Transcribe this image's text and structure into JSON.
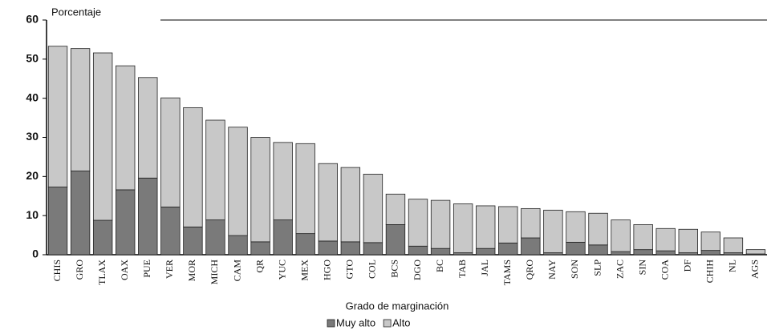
{
  "chart_data": {
    "type": "stacked_bar",
    "y_label": "Porcentaje",
    "x_label": "Grado de marginación",
    "categories": [
      "CHIS",
      "GRO",
      "TLAX",
      "OAX",
      "PUE",
      "VER",
      "MOR",
      "MICH",
      "CAM",
      "QR",
      "YUC",
      "MEX",
      "HGO",
      "GTO",
      "COL",
      "BCS",
      "DGO",
      "BC",
      "TAB",
      "JAL",
      "TAMS",
      "QRO",
      "NAY",
      "SON",
      "SLP",
      "ZAC",
      "SIN",
      "COA",
      "DF",
      "CHIH",
      "NL",
      "AGS"
    ],
    "series": [
      {
        "name": "Muy alto",
        "color": "#7a7a7a",
        "values": [
          17.3,
          21.4,
          8.8,
          16.6,
          19.6,
          12.2,
          7.1,
          8.9,
          4.9,
          3.3,
          8.9,
          5.4,
          3.5,
          3.3,
          3.1,
          7.7,
          2.2,
          1.6,
          0.5,
          1.6,
          3.0,
          4.3,
          0.5,
          3.2,
          2.5,
          0.8,
          1.3,
          1.0,
          0.5,
          1.1,
          0.5,
          0.2
        ]
      },
      {
        "name": "Alto",
        "color": "#c8c8c8",
        "values": [
          36.0,
          31.3,
          42.8,
          31.7,
          25.7,
          27.9,
          30.5,
          25.5,
          27.7,
          26.7,
          19.8,
          23.0,
          19.8,
          19.0,
          17.5,
          7.8,
          12.0,
          12.3,
          12.5,
          10.9,
          9.3,
          7.5,
          10.9,
          7.8,
          8.1,
          8.1,
          6.4,
          5.7,
          6.0,
          4.7,
          3.8,
          1.1
        ]
      }
    ],
    "ylim": [
      0,
      60
    ],
    "yticks": [
      0,
      10,
      20,
      30,
      40,
      50,
      60
    ],
    "grid": false,
    "legend": "bottom"
  }
}
